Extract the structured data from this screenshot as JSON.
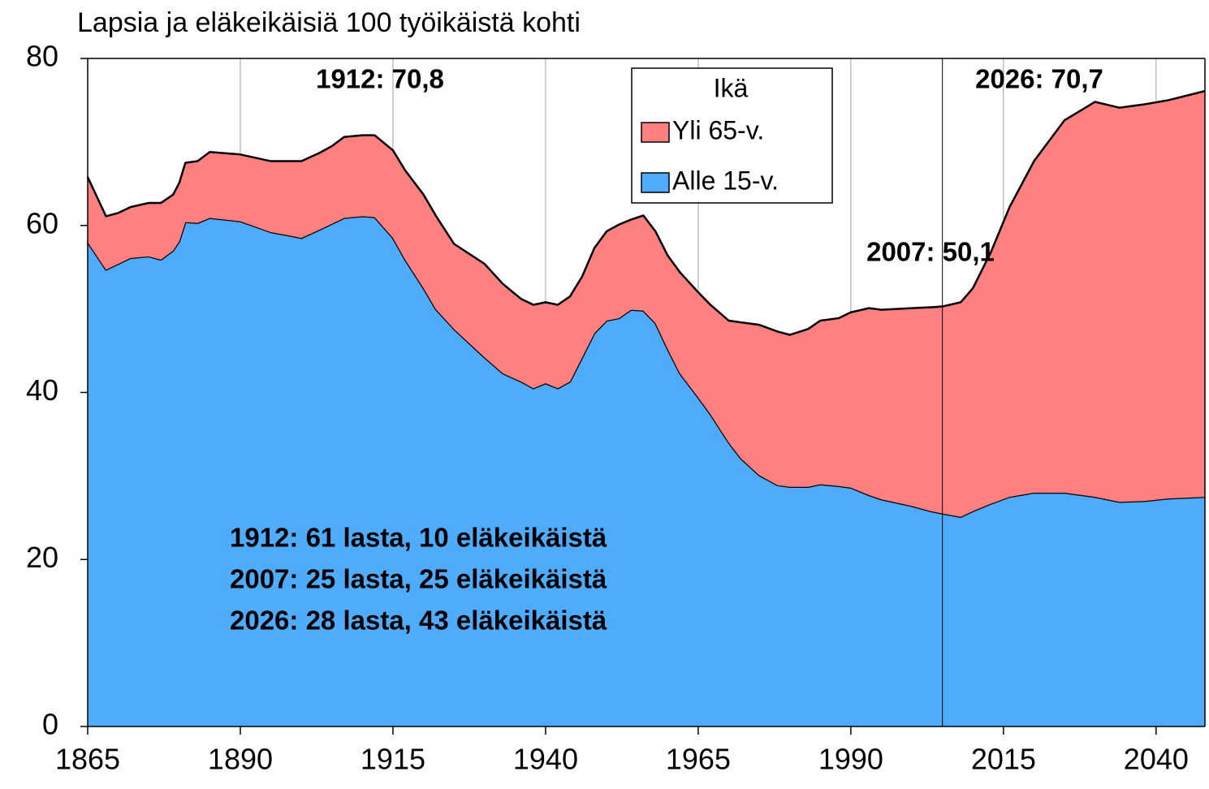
{
  "chart_data": {
    "type": "stacked_area",
    "title": "Lapsia ja eläkeikäisiä 100 työikäistä kohti",
    "x": [
      1865,
      1868,
      1870,
      1872,
      1875,
      1877,
      1879,
      1880,
      1881,
      1883,
      1885,
      1890,
      1895,
      1898,
      1900,
      1903,
      1905,
      1907,
      1910,
      1912,
      1915,
      1917,
      1920,
      1922,
      1925,
      1930,
      1933,
      1936,
      1938,
      1940,
      1942,
      1944,
      1946,
      1948,
      1950,
      1952,
      1954,
      1956,
      1958,
      1960,
      1962,
      1965,
      1967,
      1970,
      1972,
      1975,
      1978,
      1980,
      1983,
      1985,
      1988,
      1990,
      1993,
      1995,
      2000,
      2003,
      2005,
      2008,
      2010,
      2013,
      2016,
      2020,
      2025,
      2030,
      2034,
      2038,
      2042,
      2048
    ],
    "series": [
      {
        "name": "Alle 15-v.",
        "color": "#4fabfc",
        "values": [
          58.0,
          54.7,
          55.4,
          56.1,
          56.3,
          55.9,
          57.0,
          58.1,
          60.4,
          60.3,
          60.9,
          60.5,
          59.2,
          58.8,
          58.5,
          59.5,
          60.2,
          60.9,
          61.1,
          61.0,
          58.5,
          55.9,
          52.5,
          50.0,
          47.6,
          44.2,
          42.3,
          41.3,
          40.5,
          41.1,
          40.5,
          41.3,
          44.2,
          47.1,
          48.6,
          48.9,
          49.9,
          49.8,
          48.3,
          45.2,
          42.3,
          39.4,
          37.4,
          34.0,
          32.1,
          30.1,
          28.9,
          28.7,
          28.7,
          29.0,
          28.8,
          28.6,
          27.7,
          27.2,
          26.4,
          25.8,
          25.5,
          25.1,
          25.8,
          26.7,
          27.5,
          28.0,
          28.0,
          27.5,
          26.9,
          27.0,
          27.3,
          27.5
        ]
      },
      {
        "name": "Yli 65-v.",
        "color": "#ff8080",
        "values": [
          7.8,
          6.4,
          6.1,
          6.1,
          6.4,
          6.8,
          6.7,
          7.0,
          7.1,
          7.4,
          7.9,
          8.0,
          8.5,
          8.9,
          9.2,
          9.2,
          9.3,
          9.7,
          9.7,
          9.8,
          10.5,
          10.7,
          11.2,
          11.2,
          10.2,
          11.2,
          10.7,
          9.9,
          10.0,
          9.7,
          10.0,
          10.2,
          9.7,
          10.2,
          10.7,
          11.2,
          10.8,
          11.4,
          11.0,
          11.2,
          12.1,
          12.6,
          13.1,
          14.6,
          16.3,
          18.0,
          18.4,
          18.2,
          18.9,
          19.6,
          20.1,
          21.0,
          22.4,
          22.7,
          23.7,
          24.4,
          24.8,
          25.7,
          26.7,
          30.2,
          34.7,
          39.7,
          44.6,
          47.3,
          47.2,
          47.5,
          47.7,
          48.6
        ]
      }
    ],
    "legend_title": "Ikä",
    "legend_position": "upper center",
    "xlim": [
      1865,
      2048
    ],
    "xticks": [
      1865,
      1890,
      1915,
      1940,
      1965,
      1990,
      2015,
      2040
    ],
    "ylim": [
      0,
      80
    ],
    "yticks": [
      0,
      20,
      40,
      60,
      80
    ],
    "grid": "x",
    "reference_line_x": 2005,
    "annotations": [
      "1912: 70,8",
      "2026: 70,7",
      "2007: 50,1"
    ],
    "notes": [
      "1912: 61 lasta, 10 eläkeikäistä",
      "2007: 25 lasta, 25 eläkeikäistä",
      "2026: 28 lasta, 43 eläkeikäistä"
    ]
  }
}
